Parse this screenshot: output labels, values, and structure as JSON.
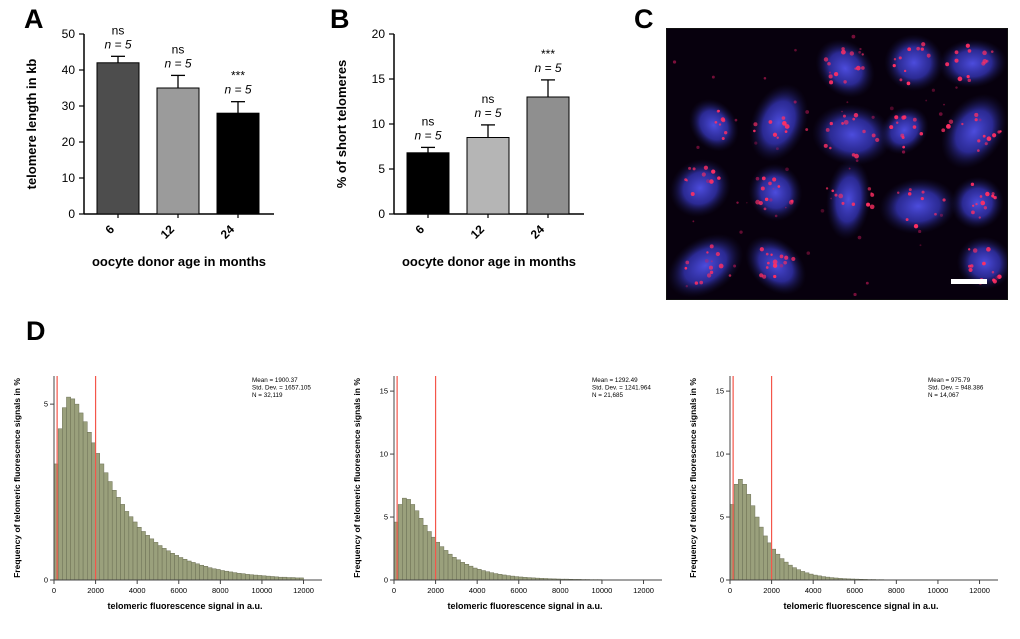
{
  "panels": {
    "a": {
      "label": "A"
    },
    "b": {
      "label": "B"
    },
    "c": {
      "label": "C",
      "description": "Fluorescence micrograph: blue-stained oocyte nuclei with red telomeric FISH signal dots on a black background, white scale bar at bottom right"
    },
    "d": {
      "label": "D"
    }
  },
  "chart_data": [
    {
      "panel": "A",
      "type": "bar",
      "xlabel": "oocyte donor age in months",
      "ylabel": "telomere length in kb",
      "categories": [
        "6",
        "12",
        "24"
      ],
      "values": [
        42,
        35,
        28
      ],
      "errors": [
        1.8,
        3.5,
        3.2
      ],
      "ylim": [
        0,
        50
      ],
      "yticks": [
        0,
        10,
        20,
        30,
        40,
        50
      ],
      "bar_colors": [
        "#4d4d4d",
        "#9b9b9b",
        "#000000"
      ],
      "annotations": [
        {
          "sig": "ns",
          "n_label": "n = 5"
        },
        {
          "sig": "ns",
          "n_label": "n = 5"
        },
        {
          "sig": "***",
          "n_label": "n = 5"
        }
      ]
    },
    {
      "panel": "B",
      "type": "bar",
      "xlabel": "oocyte donor age in months",
      "ylabel": "% of short telomeres",
      "categories": [
        "6",
        "12",
        "24"
      ],
      "values": [
        6.8,
        8.5,
        13
      ],
      "errors": [
        0.6,
        1.4,
        1.9
      ],
      "ylim": [
        0,
        20
      ],
      "yticks": [
        0,
        5,
        10,
        15,
        20
      ],
      "bar_colors": [
        "#000000",
        "#b5b5b5",
        "#8f8f8f"
      ],
      "annotations": [
        {
          "sig": "ns",
          "n_label": "n = 5"
        },
        {
          "sig": "ns",
          "n_label": "n = 5"
        },
        {
          "sig": "***",
          "n_label": "n = 5"
        }
      ]
    },
    {
      "panel": "D1",
      "type": "histogram",
      "xlabel": "telomeric fluorescence signal in a.u.",
      "ylabel": "Frequency of telomeric fluorescence signals in %",
      "xlim": [
        0,
        12600
      ],
      "xticks": [
        0,
        2000,
        4000,
        6000,
        8000,
        10000,
        12000
      ],
      "ylim": [
        0,
        5.8
      ],
      "yticks": [
        0,
        5
      ],
      "bin_start": 0,
      "bin_width": 200,
      "bin_heights": [
        3.3,
        4.3,
        4.9,
        5.2,
        5.15,
        5.0,
        4.75,
        4.5,
        4.2,
        3.9,
        3.6,
        3.3,
        3.05,
        2.8,
        2.55,
        2.35,
        2.15,
        1.95,
        1.8,
        1.65,
        1.5,
        1.38,
        1.27,
        1.17,
        1.07,
        0.98,
        0.9,
        0.83,
        0.76,
        0.7,
        0.64,
        0.59,
        0.54,
        0.5,
        0.46,
        0.42,
        0.39,
        0.35,
        0.32,
        0.3,
        0.27,
        0.25,
        0.23,
        0.21,
        0.19,
        0.18,
        0.16,
        0.15,
        0.14,
        0.13,
        0.12,
        0.11,
        0.1,
        0.09,
        0.08,
        0.08,
        0.07,
        0.07,
        0.06,
        0.06
      ],
      "red_lines": [
        150,
        2000
      ],
      "stats": [
        "Mean = 1900.37",
        "Std. Dev. = 1657.105",
        "N = 32,119"
      ]
    },
    {
      "panel": "D2",
      "type": "histogram",
      "xlabel": "telomeric fluorescence signal in a.u.",
      "ylabel": "Frequency of telomeric fluorescence signals in %",
      "xlim": [
        0,
        12600
      ],
      "xticks": [
        0,
        2000,
        4000,
        6000,
        8000,
        10000,
        12000
      ],
      "ylim": [
        0,
        16.2
      ],
      "yticks": [
        0,
        5,
        10,
        15
      ],
      "bin_start": 0,
      "bin_width": 200,
      "bin_heights": [
        4.6,
        6.0,
        6.5,
        6.4,
        6.0,
        5.5,
        4.9,
        4.35,
        3.85,
        3.4,
        3.0,
        2.65,
        2.35,
        2.05,
        1.8,
        1.6,
        1.4,
        1.25,
        1.1,
        0.95,
        0.85,
        0.75,
        0.66,
        0.58,
        0.51,
        0.45,
        0.4,
        0.35,
        0.31,
        0.27,
        0.24,
        0.21,
        0.19,
        0.17,
        0.15,
        0.13,
        0.12,
        0.1,
        0.09,
        0.08,
        0.07,
        0.07,
        0.06,
        0.05,
        0.05,
        0.04,
        0.04,
        0.03,
        0.03,
        0.03,
        0.02,
        0.02,
        0.02,
        0.02,
        0.01,
        0.01,
        0.01,
        0.01,
        0.01,
        0.01
      ],
      "red_lines": [
        150,
        2000
      ],
      "stats": [
        "Mean = 1292.49",
        "Std. Dev. = 1241.964",
        "N = 21,685"
      ]
    },
    {
      "panel": "D3",
      "type": "histogram",
      "xlabel": "telomeric fluorescence signal in a.u.",
      "ylabel": "Frequency of telomeric fluorescence signals in %",
      "xlim": [
        0,
        12600
      ],
      "xticks": [
        0,
        2000,
        4000,
        6000,
        8000,
        10000,
        12000
      ],
      "ylim": [
        0,
        16.2
      ],
      "yticks": [
        0,
        5,
        10,
        15
      ],
      "bin_start": 0,
      "bin_width": 200,
      "bin_heights": [
        6.0,
        7.6,
        8.0,
        7.6,
        6.8,
        5.9,
        5.0,
        4.2,
        3.5,
        2.95,
        2.45,
        2.05,
        1.7,
        1.42,
        1.18,
        0.98,
        0.82,
        0.68,
        0.57,
        0.47,
        0.39,
        0.33,
        0.27,
        0.23,
        0.19,
        0.16,
        0.13,
        0.11,
        0.09,
        0.08,
        0.07,
        0.06,
        0.05,
        0.04,
        0.04,
        0.03,
        0.03,
        0.02,
        0.02,
        0.02,
        0.01,
        0.01,
        0.01,
        0.01,
        0.01,
        0.01,
        0.01,
        0.01,
        0.01,
        0,
        0,
        0,
        0,
        0,
        0,
        0,
        0,
        0,
        0,
        0
      ],
      "red_lines": [
        150,
        2000
      ],
      "stats": [
        "Mean = 975.79",
        "Std. Dev. = 948.386",
        "N = 14,067"
      ]
    }
  ],
  "colors": {
    "histogram_bar": "#9aa07c",
    "histogram_bar_edge": "#6b6f54",
    "red_reference_line": "#f4564a",
    "micrograph_background": "#07000d",
    "nucleus_blue": "#4646e0",
    "telomere_red": "#ff2e63",
    "scale_bar": "#ffffff"
  }
}
